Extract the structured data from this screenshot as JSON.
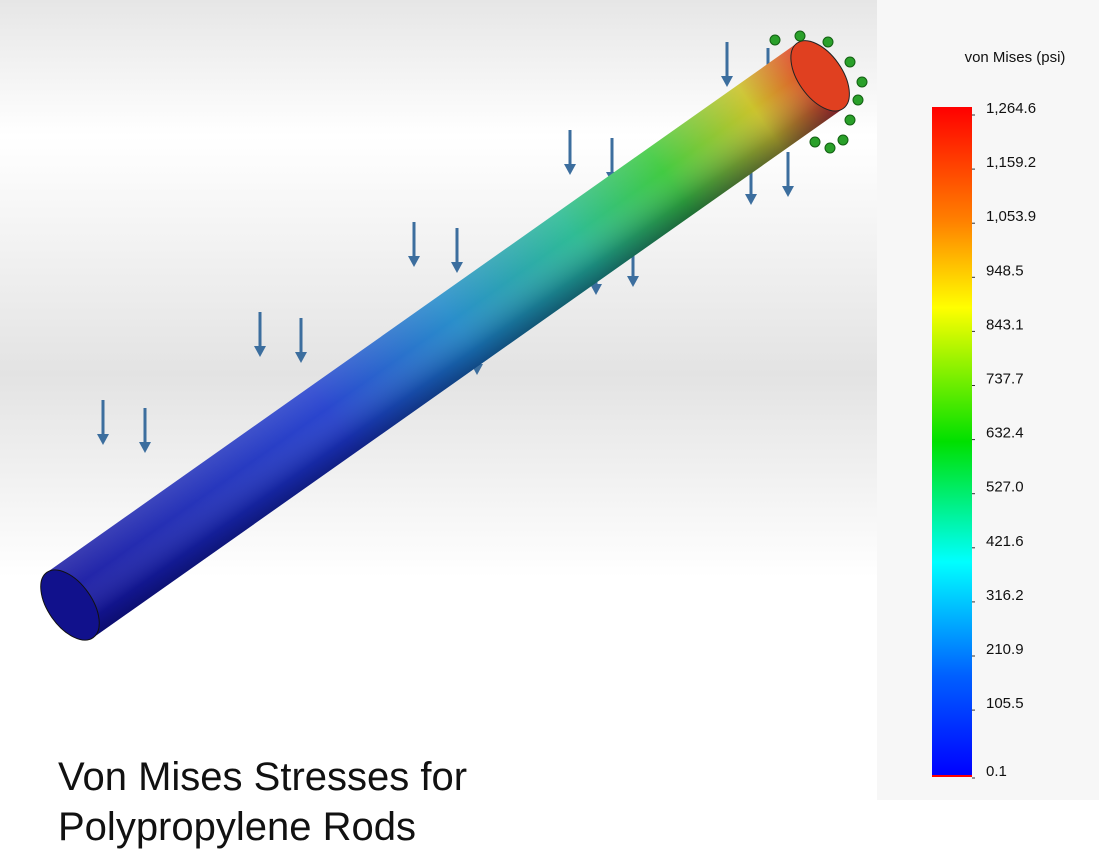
{
  "legend": {
    "title": "von Mises (psi)",
    "ticks": [
      "1,264.6",
      "1,159.2",
      "1,053.9",
      "948.5",
      "843.1",
      "737.7",
      "632.4",
      "527.0",
      "421.6",
      "316.2",
      "210.9",
      "105.5",
      "0.1"
    ]
  },
  "caption": {
    "lines": [
      "Von Mises Stresses for",
      "Polypropylene Rods"
    ]
  }
}
